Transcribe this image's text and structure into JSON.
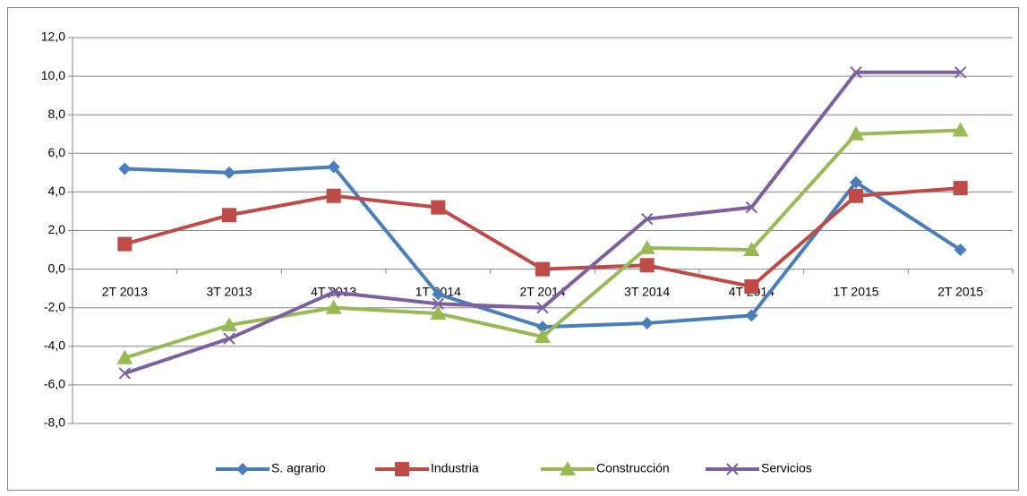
{
  "chart_data": {
    "type": "line",
    "categories": [
      "2T 2013",
      "3T 2013",
      "4T 2013",
      "1T 2014",
      "2T 2014",
      "3T 2014",
      "4T 2014",
      "1T 2015",
      "2T 2015"
    ],
    "series": [
      {
        "name": "S. agrario",
        "color": "#4a7ebb",
        "marker": "diamond",
        "values": [
          5.2,
          5.0,
          5.3,
          -1.3,
          -3.0,
          -2.8,
          -2.4,
          4.5,
          1.0
        ]
      },
      {
        "name": "Industria",
        "color": "#be4b48",
        "marker": "square",
        "values": [
          1.3,
          2.8,
          3.8,
          3.2,
          0.0,
          0.2,
          -0.9,
          3.8,
          4.2
        ]
      },
      {
        "name": "Construcción",
        "color": "#98b954",
        "marker": "triangle",
        "values": [
          -4.6,
          -2.9,
          -2.0,
          -2.3,
          -3.5,
          1.1,
          1.0,
          7.0,
          7.2
        ]
      },
      {
        "name": "Servicios",
        "color": "#7d60a0",
        "marker": "x",
        "values": [
          -5.4,
          -3.6,
          -1.2,
          -1.8,
          -2.0,
          2.6,
          3.2,
          10.2,
          10.2
        ]
      }
    ],
    "ylim": [
      -8,
      12
    ],
    "yticks": [
      {
        "value": -8,
        "label": "-8,0"
      },
      {
        "value": -6,
        "label": "-6,0"
      },
      {
        "value": -4,
        "label": "-4,0"
      },
      {
        "value": -2,
        "label": "-2,0"
      },
      {
        "value": 0,
        "label": "0,0"
      },
      {
        "value": 2,
        "label": "2,0"
      },
      {
        "value": 4,
        "label": "4,0"
      },
      {
        "value": 6,
        "label": "6,0"
      },
      {
        "value": 8,
        "label": "8,0"
      },
      {
        "value": 10,
        "label": "10,0"
      },
      {
        "value": 12,
        "label": "12,0"
      }
    ],
    "grid": true,
    "legend": "bottom"
  }
}
